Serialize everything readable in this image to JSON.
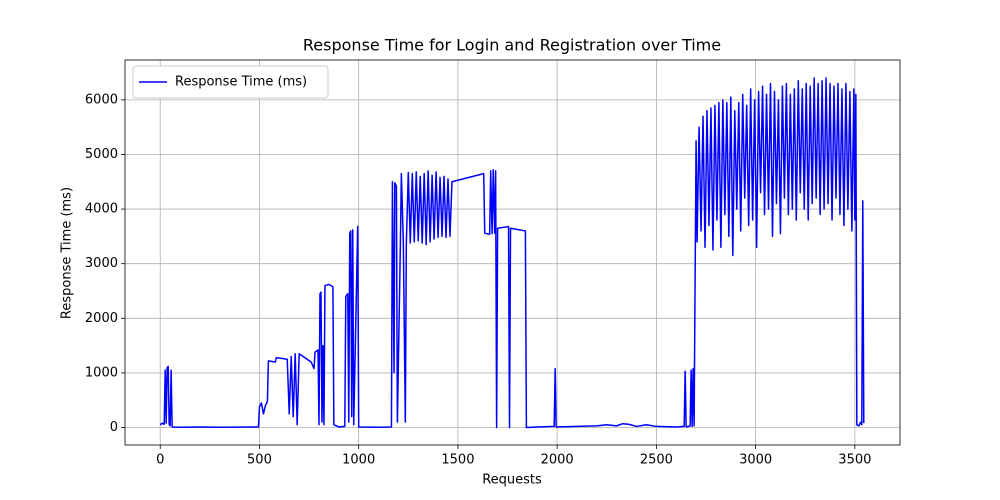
{
  "chart_data": {
    "type": "line",
    "title": "Response Time for Login and Registration over Time",
    "xlabel": "Requests",
    "ylabel": "Response Time (ms)",
    "xlim": [
      -177.5,
      3727.5
    ],
    "ylim": [
      -320,
      6730
    ],
    "xticks": [
      0,
      500,
      1000,
      1500,
      2000,
      2500,
      3000,
      3500
    ],
    "yticks": [
      0,
      1000,
      2000,
      3000,
      4000,
      5000,
      6000
    ],
    "grid": true,
    "legend": "upper left",
    "x": [
      0,
      10,
      20,
      25,
      30,
      35,
      40,
      45,
      50,
      55,
      60,
      100,
      200,
      300,
      400,
      495,
      500,
      510,
      520,
      530,
      540,
      545,
      580,
      585,
      640,
      650,
      660,
      670,
      680,
      690,
      700,
      760,
      775,
      780,
      795,
      800,
      805,
      810,
      815,
      820,
      825,
      830,
      850,
      870,
      875,
      900,
      930,
      935,
      945,
      950,
      955,
      960,
      965,
      970,
      975,
      995,
      1000,
      1100,
      1165,
      1170,
      1178,
      1182,
      1190,
      1195,
      1210,
      1215,
      1225,
      1235,
      1240,
      1250,
      1260,
      1270,
      1280,
      1290,
      1300,
      1310,
      1320,
      1330,
      1340,
      1350,
      1360,
      1370,
      1380,
      1390,
      1400,
      1410,
      1420,
      1430,
      1440,
      1450,
      1460,
      1470,
      1630,
      1635,
      1660,
      1665,
      1672,
      1678,
      1685,
      1690,
      1695,
      1700,
      1755,
      1760,
      1765,
      1840,
      1845,
      1900,
      1985,
      1990,
      1995,
      2100,
      2200,
      2250,
      2300,
      2330,
      2360,
      2400,
      2450,
      2500,
      2600,
      2640,
      2645,
      2650,
      2670,
      2675,
      2680,
      2685,
      2690,
      2700,
      2705,
      2715,
      2725,
      2735,
      2745,
      2755,
      2765,
      2775,
      2785,
      2795,
      2805,
      2815,
      2825,
      2835,
      2845,
      2855,
      2865,
      2875,
      2885,
      2895,
      2905,
      2915,
      2925,
      2935,
      2945,
      2955,
      2965,
      2975,
      2985,
      2995,
      3005,
      3015,
      3025,
      3035,
      3045,
      3055,
      3065,
      3075,
      3085,
      3095,
      3105,
      3115,
      3125,
      3135,
      3145,
      3155,
      3165,
      3175,
      3185,
      3195,
      3205,
      3215,
      3225,
      3235,
      3245,
      3255,
      3265,
      3275,
      3285,
      3295,
      3305,
      3315,
      3325,
      3335,
      3345,
      3355,
      3365,
      3375,
      3385,
      3395,
      3405,
      3415,
      3425,
      3435,
      3445,
      3455,
      3465,
      3475,
      3485,
      3495,
      3500,
      3505,
      3510,
      3520,
      3530,
      3535,
      3540,
      3545
    ],
    "series": [
      {
        "name": "Response Time (ms)",
        "color": "#0000ff",
        "values": [
          50,
          80,
          60,
          1050,
          80,
          1100,
          1120,
          60,
          30,
          1050,
          10,
          5,
          10,
          5,
          8,
          10,
          380,
          450,
          250,
          400,
          480,
          1220,
          1200,
          1280,
          1250,
          250,
          1300,
          200,
          1350,
          50,
          1350,
          1200,
          1080,
          1380,
          1420,
          50,
          2450,
          2480,
          100,
          1500,
          50,
          2600,
          2620,
          2580,
          50,
          10,
          20,
          2400,
          2450,
          100,
          3550,
          3600,
          200,
          3620,
          50,
          3680,
          10,
          5,
          10,
          4500,
          1000,
          4480,
          4420,
          100,
          3350,
          4650,
          3380,
          100,
          3360,
          4670,
          3380,
          4650,
          3400,
          4680,
          3420,
          4600,
          3380,
          4650,
          3350,
          4700,
          3400,
          4620,
          3450,
          4680,
          3480,
          4580,
          3500,
          4600,
          3480,
          4550,
          3500,
          4500,
          4650,
          3560,
          3540,
          4700,
          3550,
          4720,
          3560,
          4700,
          0,
          3650,
          3680,
          0,
          3650,
          3600,
          0,
          10,
          20,
          1080,
          10,
          20,
          30,
          50,
          30,
          70,
          60,
          20,
          50,
          20,
          10,
          20,
          1030,
          10,
          30,
          1050,
          20,
          1080,
          30,
          5250,
          3400,
          5500,
          3600,
          5700,
          3300,
          5800,
          3700,
          5850,
          3250,
          5900,
          3800,
          5950,
          3300,
          6000,
          3900,
          5950,
          3500,
          6050,
          3150,
          5800,
          4000,
          5950,
          3600,
          6100,
          4200,
          5900,
          3700,
          6200,
          3800,
          6000,
          3300,
          6150,
          4300,
          6250,
          3900,
          6100,
          4000,
          6300,
          3500,
          6150,
          4100,
          6000,
          3550,
          6250,
          4200,
          6300,
          3900,
          6100,
          4000,
          6200,
          3800,
          6350,
          4300,
          6200,
          4000,
          6300,
          3800,
          6250,
          4100,
          6400,
          4200,
          6300,
          3900,
          6350,
          4000,
          6400,
          4100,
          6300,
          3800,
          6250,
          4200,
          6300,
          3900,
          6200,
          3700,
          6300,
          4000,
          6150,
          3600,
          6200,
          3800,
          6100,
          50,
          30,
          100,
          50,
          4150,
          80
        ]
      }
    ]
  }
}
